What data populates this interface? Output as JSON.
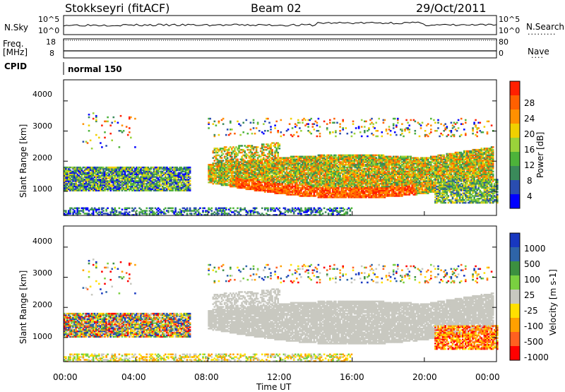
{
  "header": {
    "station": "Stokkseyri (fitACF)",
    "beam": "Beam 02",
    "date": "29/Oct/2011"
  },
  "top_panels": {
    "nsky_label": "N.Sky",
    "nsky_ticks": [
      "10^5",
      "10^0"
    ],
    "nsearch_label": "N.Search",
    "nsearch_ticks": [
      "10^5",
      "10^0"
    ],
    "freq_label_1": "Freq.",
    "freq_label_2": "[MHz]",
    "freq_ticks": [
      "18",
      "8"
    ],
    "nave_label": "Nave",
    "nave_ticks": [
      "80",
      "0"
    ],
    "cpid_label": "CPID",
    "cpid_value": "normal 150"
  },
  "colors": {
    "power": [
      "#0000ff",
      "#2a4db0",
      "#3a8a5a",
      "#4db33a",
      "#9ad23a",
      "#f0d000",
      "#ff9000",
      "#ff6000",
      "#ff2000"
    ],
    "velocity": [
      "#1838c0",
      "#2e64a8",
      "#3c9040",
      "#7ad040",
      "#c8c8c0",
      "#ffe000",
      "#ffa000",
      "#ff6020",
      "#ff0000"
    ]
  },
  "chart_data": [
    {
      "type": "heatmap",
      "title": "Power",
      "ylabel": "Slant Range [km]",
      "ylim": [
        200,
        4700
      ],
      "yticks": [
        "1000",
        "2000",
        "3000",
        "4000"
      ],
      "colorbar_label": "Power [dB]",
      "colorbar_ticks": [
        "4",
        "8",
        "12",
        "16",
        "20",
        "24",
        "28"
      ],
      "xlim": [
        0,
        24
      ]
    },
    {
      "type": "heatmap",
      "title": "Velocity",
      "ylabel": "Slant Range [km]",
      "ylim": [
        200,
        4700
      ],
      "yticks": [
        "1000",
        "2000",
        "3000",
        "4000"
      ],
      "colorbar_label": "Velocity [m s-1]",
      "colorbar_ticks": [
        "1000",
        "500",
        "100",
        "25",
        "-25",
        "-100",
        "-500",
        "-1000"
      ],
      "xlim": [
        0,
        24
      ],
      "xticks": [
        "00:00",
        "04:00",
        "08:00",
        "12:00",
        "16:00",
        "20:00",
        "00:00"
      ],
      "xlabel": "Time UT"
    }
  ]
}
